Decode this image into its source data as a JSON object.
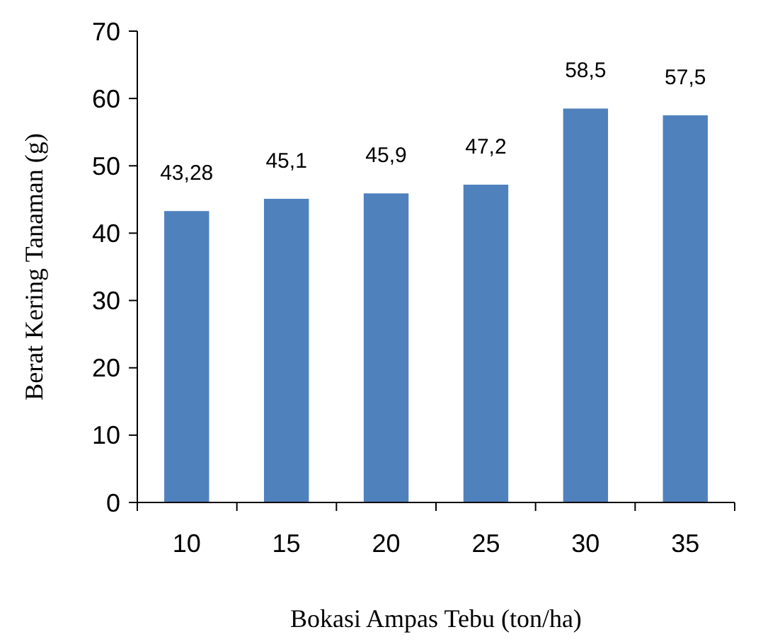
{
  "chart_data": {
    "type": "bar",
    "xlabel": "Bokasi Ampas Tebu (ton/ha)",
    "ylabel": "Berat Kering Tanaman  (g)",
    "categories": [
      "10",
      "15",
      "20",
      "25",
      "30",
      "35"
    ],
    "values": [
      43.28,
      45.1,
      45.9,
      47.2,
      58.5,
      57.5
    ],
    "value_labels": [
      "43,28",
      "45,1",
      "45,9",
      "47,2",
      "58,5",
      "57,5"
    ],
    "color": "#4f81bd",
    "ylim": [
      0,
      70
    ],
    "yticks": [
      0,
      10,
      20,
      30,
      40,
      50,
      60,
      70
    ],
    "grid": false
  }
}
